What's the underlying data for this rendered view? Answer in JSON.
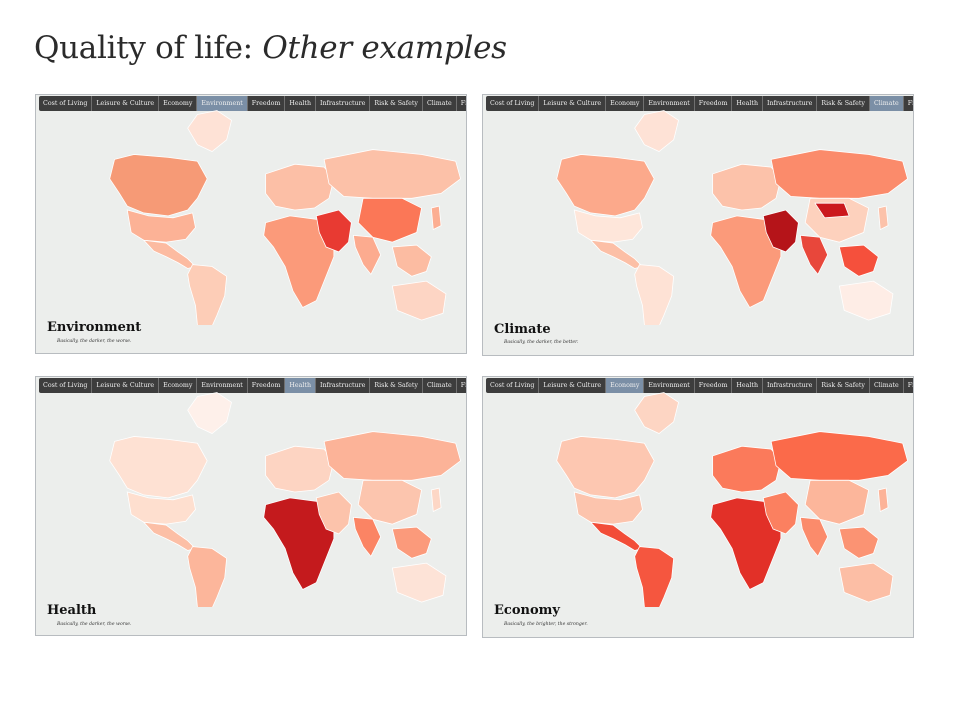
{
  "title": {
    "main": "Quality of life:",
    "sub": "Other examples"
  },
  "tabs": [
    "Cost of Living",
    "Leisure & Culture",
    "Economy",
    "Environment",
    "Freedom",
    "Health",
    "Infrastructure",
    "Risk & Safety",
    "Climate",
    "Final"
  ],
  "panels": [
    {
      "label": "Environment",
      "caption": "Basically, the darker, the worse.",
      "active_tab": "Environment",
      "colors": {
        "na": "#f69a76",
        "us": "#fcb296",
        "la": "#fcbba1",
        "sa": "#fdcdb7",
        "eu": "#fcbfa6",
        "ru": "#fcc1a8",
        "af": "#fb9a7a",
        "me": "#e83a32",
        "cn": "#fb7757",
        "in": "#fcab8f",
        "au": "#fdd5c4",
        "gl": "#fee2d6",
        "sea": "#fcbca2",
        "jp": "#fcae92"
      }
    },
    {
      "label": "Climate",
      "caption": "Basically, the darker, the better.",
      "active_tab": "Climate",
      "colors": {
        "na": "#fca98b",
        "us": "#fee6da",
        "la": "#fcbfa6",
        "sa": "#fee2d5",
        "eu": "#fcc2aa",
        "ru": "#fb8b6b",
        "af": "#fb9a7a",
        "me": "#b51419",
        "cn": "#fdd1bd",
        "in": "#e8473b",
        "au": "#feede6",
        "gl": "#fee2d6",
        "sea": "#f5503c",
        "jp": "#fcc2aa",
        "mn": "#cb181d"
      }
    },
    {
      "label": "Health",
      "caption": "Basically, the darker, the worse.",
      "active_tab": "Health",
      "colors": {
        "na": "#fee1d3",
        "us": "#fedfcf",
        "la": "#fcbfa6",
        "sa": "#fcb69b",
        "eu": "#fdd4c2",
        "ru": "#fcb398",
        "af": "#c41a1d",
        "me": "#fcc3ab",
        "cn": "#fcc5ae",
        "in": "#fb8464",
        "au": "#fde3d7",
        "gl": "#fef0ea",
        "sea": "#fb9a7b",
        "jp": "#fdd7c6"
      }
    },
    {
      "label": "Economy",
      "caption": "Basically, the brighter, the stronger.",
      "active_tab": "Economy",
      "colors": {
        "na": "#fdc7b1",
        "us": "#fcc4ad",
        "la": "#f24d38",
        "sa": "#f5563f",
        "eu": "#fb7a5b",
        "ru": "#fb6a4a",
        "af": "#e23028",
        "me": "#fb8060",
        "cn": "#fcb69b",
        "in": "#fb8b6b",
        "au": "#fcbea5",
        "gl": "#fdd5c3",
        "sea": "#fb9373",
        "jp": "#fcb398"
      }
    }
  ]
}
